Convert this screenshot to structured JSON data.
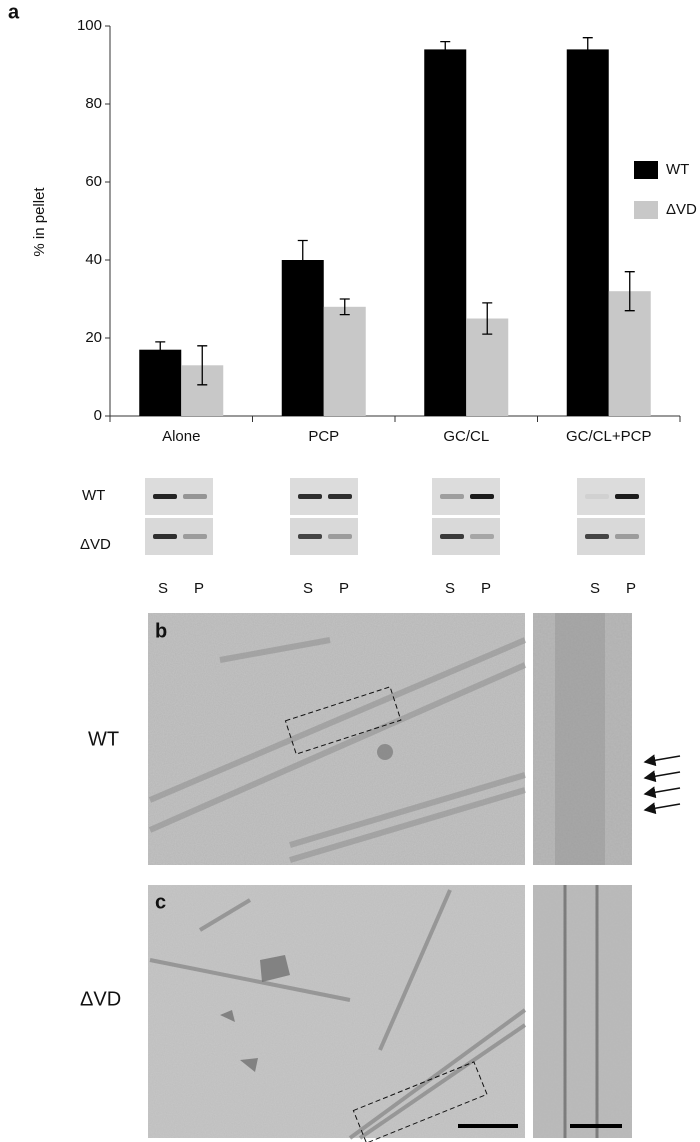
{
  "chart_data": {
    "type": "bar",
    "panel_label": "a",
    "y_label": "% in pellet",
    "categories": [
      "Alone",
      "PCP",
      "GC/CL",
      "GC/CL+PCP"
    ],
    "series": [
      {
        "name": "WT",
        "color": "#000000",
        "values": [
          17,
          40,
          94,
          94
        ],
        "errors": [
          2,
          5,
          2,
          3
        ]
      },
      {
        "name": "ΔVD",
        "color": "#c8c8c8",
        "values": [
          13,
          28,
          25,
          32
        ],
        "errors": [
          5,
          2,
          4,
          5
        ]
      }
    ],
    "ylim": [
      0,
      100
    ],
    "yticks": [
      0,
      20,
      40,
      60,
      80,
      100
    ],
    "grid": false,
    "legend": "right"
  },
  "gels": {
    "rows": [
      "WT",
      "ΔVD"
    ],
    "lanes": [
      "S",
      "P"
    ]
  },
  "micrographs": {
    "panels": [
      {
        "label": "b",
        "name": "WT"
      },
      {
        "label": "c",
        "name": "ΔVD"
      }
    ]
  }
}
